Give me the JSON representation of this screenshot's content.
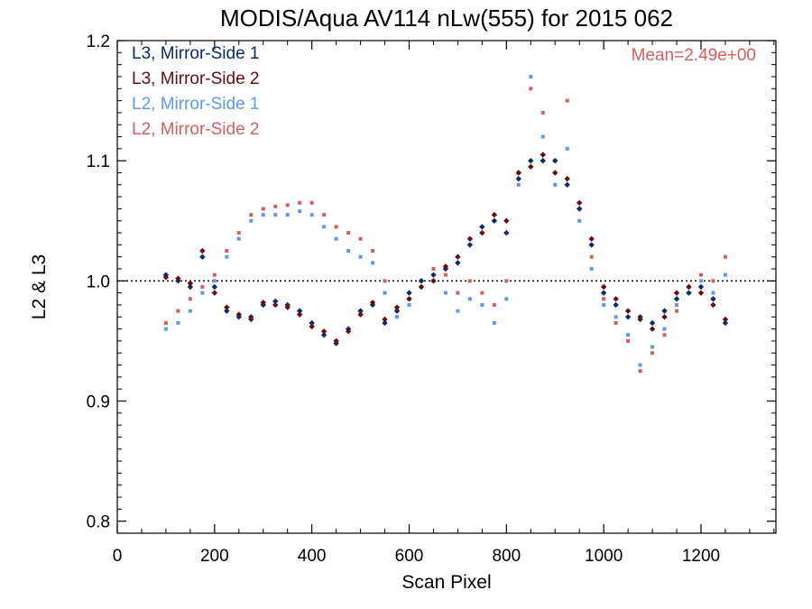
{
  "chart_data": {
    "type": "scatter",
    "title": "MODIS/Aqua AV114 nLw(555) for 2015 062",
    "xlabel": "Scan Pixel",
    "ylabel": "L2 & L3",
    "xlim": [
      0,
      1354
    ],
    "ylim": [
      0.79,
      1.2
    ],
    "x_ticks": [
      0,
      200,
      400,
      600,
      800,
      1000,
      1200
    ],
    "y_ticks": [
      0.8,
      0.9,
      1.0,
      1.1,
      1.2
    ],
    "x_tick_labels": [
      "0",
      "200",
      "400",
      "600",
      "800",
      "1000",
      "1200"
    ],
    "y_tick_labels": [
      "0.8",
      "0.9",
      "1.0",
      "1.1",
      "1.2"
    ],
    "reference_line": 1.0,
    "legend_position": "top-left",
    "annotation": "Mean=2.49e+00",
    "annotation_color": "#d06060",
    "series": [
      {
        "name": "L3, Mirror-Side 1",
        "color": "#0a2a6a",
        "marker": "diamond",
        "x": [
          100,
          125,
          150,
          175,
          200,
          225,
          250,
          275,
          300,
          325,
          350,
          375,
          400,
          425,
          450,
          475,
          500,
          525,
          550,
          575,
          600,
          625,
          650,
          675,
          700,
          725,
          750,
          775,
          800,
          825,
          850,
          875,
          900,
          925,
          950,
          975,
          1000,
          1025,
          1050,
          1075,
          1100,
          1125,
          1150,
          1175,
          1200,
          1225,
          1250
        ],
        "y": [
          1.005,
          1.0,
          0.995,
          1.02,
          0.995,
          0.975,
          0.97,
          0.97,
          0.98,
          0.983,
          0.98,
          0.975,
          0.965,
          0.955,
          0.948,
          0.96,
          0.975,
          0.98,
          0.965,
          0.975,
          0.99,
          1.0,
          1.005,
          1.01,
          1.015,
          1.03,
          1.045,
          1.05,
          1.04,
          1.085,
          1.1,
          1.1,
          1.1,
          1.08,
          1.06,
          1.03,
          0.99,
          0.98,
          0.97,
          0.97,
          0.965,
          0.975,
          0.985,
          0.99,
          0.995,
          0.985,
          0.965
        ]
      },
      {
        "name": "L3, Mirror-Side 2",
        "color": "#6a0a10",
        "marker": "diamond",
        "x": [
          100,
          125,
          150,
          175,
          200,
          225,
          250,
          275,
          300,
          325,
          350,
          375,
          400,
          425,
          450,
          475,
          500,
          525,
          550,
          575,
          600,
          625,
          650,
          675,
          700,
          725,
          750,
          775,
          800,
          825,
          850,
          875,
          900,
          925,
          950,
          975,
          1000,
          1025,
          1050,
          1075,
          1100,
          1125,
          1150,
          1175,
          1200,
          1225,
          1250
        ],
        "y": [
          1.003,
          1.002,
          0.998,
          1.025,
          0.99,
          0.978,
          0.972,
          0.968,
          0.982,
          0.98,
          0.978,
          0.972,
          0.962,
          0.958,
          0.95,
          0.958,
          0.972,
          0.982,
          0.968,
          0.978,
          0.985,
          0.995,
          1.0,
          1.012,
          1.02,
          1.035,
          1.04,
          1.055,
          1.05,
          1.09,
          1.095,
          1.105,
          1.09,
          1.085,
          1.065,
          1.035,
          0.995,
          0.985,
          0.975,
          0.968,
          0.96,
          0.97,
          0.99,
          0.995,
          0.99,
          0.98,
          0.968
        ]
      },
      {
        "name": "L2, Mirror-Side 1",
        "color": "#6495ed",
        "marker": "square",
        "x": [
          100,
          125,
          150,
          175,
          200,
          225,
          250,
          275,
          300,
          325,
          350,
          375,
          400,
          425,
          450,
          475,
          500,
          525,
          550,
          575,
          600,
          625,
          650,
          675,
          700,
          725,
          750,
          775,
          800,
          825,
          850,
          875,
          900,
          925,
          950,
          975,
          1000,
          1025,
          1050,
          1075,
          1100,
          1125,
          1150,
          1175,
          1200,
          1225,
          1250
        ],
        "y": [
          0.96,
          0.965,
          0.975,
          0.99,
          1.0,
          1.02,
          1.035,
          1.05,
          1.055,
          1.055,
          1.055,
          1.058,
          1.055,
          1.045,
          1.035,
          1.025,
          1.02,
          1.015,
          0.99,
          0.97,
          0.98,
          0.995,
          1.0,
          0.99,
          0.975,
          0.985,
          0.98,
          0.965,
          0.985,
          1.08,
          1.17,
          1.12,
          1.08,
          1.11,
          1.05,
          1.01,
          0.98,
          0.97,
          0.955,
          0.93,
          0.945,
          0.96,
          0.98,
          0.99,
          1.0,
          0.99,
          1.005
        ]
      },
      {
        "name": "L2, Mirror-Side 2",
        "color": "#d06060",
        "marker": "square",
        "x": [
          100,
          125,
          150,
          175,
          200,
          225,
          250,
          275,
          300,
          325,
          350,
          375,
          400,
          425,
          450,
          475,
          500,
          525,
          550,
          575,
          600,
          625,
          650,
          675,
          700,
          725,
          750,
          775,
          800,
          825,
          850,
          875,
          900,
          925,
          950,
          975,
          1000,
          1025,
          1050,
          1075,
          1100,
          1125,
          1150,
          1175,
          1200,
          1225,
          1250
        ],
        "y": [
          0.965,
          0.975,
          0.985,
          0.995,
          1.005,
          1.025,
          1.04,
          1.055,
          1.06,
          1.062,
          1.063,
          1.065,
          1.065,
          1.055,
          1.045,
          1.04,
          1.035,
          1.025,
          1.0,
          0.975,
          0.985,
          1.0,
          1.01,
          1.005,
          0.99,
          1.0,
          0.99,
          0.98,
          1.0,
          1.09,
          1.16,
          1.14,
          1.1,
          1.15,
          1.06,
          1.02,
          0.985,
          0.965,
          0.95,
          0.925,
          0.94,
          0.955,
          0.975,
          0.995,
          1.005,
          1.0,
          1.02
        ]
      }
    ]
  }
}
